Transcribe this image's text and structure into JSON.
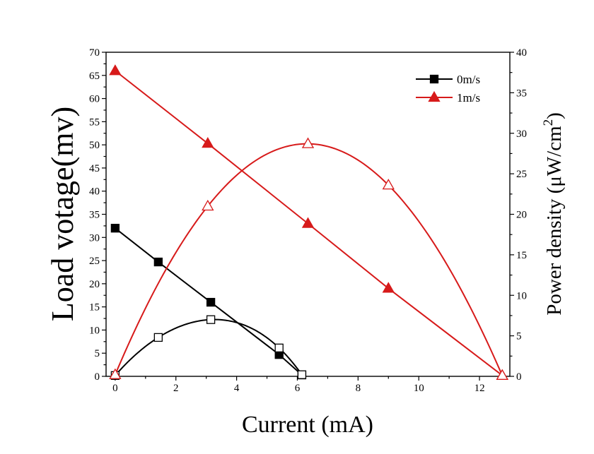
{
  "chart_data": {
    "type": "line",
    "xlabel": "Current (mA)",
    "ylabel_left": "Load votage(mv)",
    "ylabel_right_prefix": "Power density (μW/cm",
    "ylabel_right_sup": "2",
    "ylabel_right_suffix": ")",
    "xlim": [
      -0.3,
      13
    ],
    "ylim_left": [
      0,
      70
    ],
    "ylim_right": [
      0,
      40
    ],
    "xticks": [
      "0",
      "2",
      "4",
      "6",
      "8",
      "10",
      "12"
    ],
    "yticks_left": [
      "0",
      "5",
      "10",
      "15",
      "20",
      "25",
      "30",
      "35",
      "40",
      "45",
      "50",
      "55",
      "60",
      "65",
      "70"
    ],
    "yticks_right": [
      "0",
      "5",
      "10",
      "15",
      "20",
      "25",
      "30",
      "35",
      "40"
    ],
    "legend_position": "top-right",
    "grid": false,
    "series": [
      {
        "name": "0m/s",
        "axis": "left",
        "color": "#000000",
        "marker": "square-filled",
        "x": [
          0,
          1.42,
          3.15,
          5.4,
          6.15
        ],
        "y": [
          32,
          24.7,
          16,
          4.7,
          0.3
        ]
      },
      {
        "name": "1m/s",
        "axis": "left",
        "color": "#d71a1a",
        "marker": "triangle-filled",
        "x": [
          0,
          3.05,
          6.35,
          9.0,
          12.75
        ],
        "y": [
          66,
          50.3,
          33,
          19,
          0.2
        ]
      },
      {
        "name": "",
        "axis": "right",
        "color": "#000000",
        "marker": "square-open",
        "x": [
          0,
          1.42,
          3.15,
          5.4,
          6.15
        ],
        "y": [
          0.1,
          4.8,
          7.0,
          3.5,
          0.2
        ]
      },
      {
        "name": "",
        "axis": "right",
        "color": "#d71a1a",
        "marker": "triangle-open",
        "x": [
          0,
          3.05,
          6.35,
          9.0,
          12.75
        ],
        "y": [
          0.2,
          21,
          28.7,
          23.6,
          0.1
        ]
      }
    ]
  }
}
